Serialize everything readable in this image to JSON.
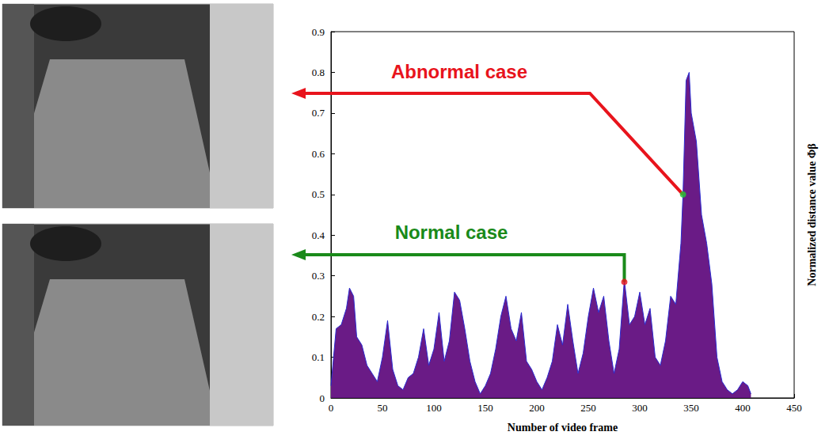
{
  "chart_data": {
    "type": "area",
    "xlabel": "Number of video frame",
    "ylabel": "Normalized distance value Φβ",
    "x": [
      0,
      5,
      10,
      15,
      18,
      22,
      25,
      30,
      35,
      40,
      45,
      50,
      55,
      60,
      65,
      70,
      75,
      80,
      85,
      90,
      95,
      100,
      105,
      110,
      115,
      120,
      125,
      130,
      135,
      140,
      145,
      150,
      155,
      160,
      165,
      170,
      175,
      180,
      185,
      190,
      195,
      200,
      205,
      210,
      215,
      220,
      225,
      230,
      235,
      240,
      245,
      250,
      255,
      260,
      265,
      270,
      275,
      280,
      285,
      290,
      295,
      300,
      305,
      310,
      315,
      320,
      325,
      330,
      335,
      340,
      342,
      345,
      348,
      350,
      355,
      360,
      365,
      370,
      375,
      380,
      385,
      390,
      395,
      400,
      405,
      408
    ],
    "values": [
      0.03,
      0.17,
      0.18,
      0.22,
      0.27,
      0.25,
      0.15,
      0.13,
      0.08,
      0.06,
      0.04,
      0.1,
      0.19,
      0.07,
      0.03,
      0.02,
      0.05,
      0.06,
      0.1,
      0.17,
      0.08,
      0.12,
      0.21,
      0.09,
      0.14,
      0.26,
      0.24,
      0.17,
      0.09,
      0.04,
      0.01,
      0.03,
      0.06,
      0.12,
      0.2,
      0.25,
      0.17,
      0.14,
      0.21,
      0.09,
      0.07,
      0.04,
      0.02,
      0.05,
      0.09,
      0.18,
      0.13,
      0.23,
      0.14,
      0.06,
      0.11,
      0.2,
      0.27,
      0.21,
      0.25,
      0.14,
      0.06,
      0.12,
      0.29,
      0.18,
      0.2,
      0.26,
      0.18,
      0.22,
      0.1,
      0.08,
      0.14,
      0.25,
      0.23,
      0.38,
      0.5,
      0.78,
      0.8,
      0.7,
      0.63,
      0.45,
      0.38,
      0.28,
      0.1,
      0.04,
      0.02,
      0.01,
      0.02,
      0.04,
      0.03,
      0.01
    ],
    "color": "#6a1b86",
    "xlim": [
      0,
      450
    ],
    "xticks": [
      0,
      50,
      100,
      150,
      200,
      250,
      300,
      350,
      400,
      450
    ],
    "ylim": [
      0,
      0.9
    ],
    "yticks": [
      0,
      0.1,
      0.2,
      0.3,
      0.4,
      0.5,
      0.6,
      0.7,
      0.8,
      0.9
    ],
    "grid": false,
    "annotations": [
      {
        "text": "Abnormal case",
        "x": 342,
        "y": 0.5
      },
      {
        "text": "Normal case",
        "x": 285,
        "y": 0.285
      }
    ]
  }
}
